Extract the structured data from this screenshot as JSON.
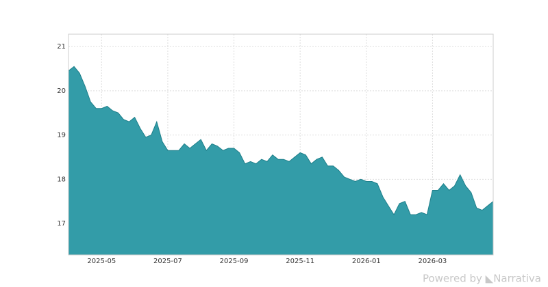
{
  "chart_data": {
    "type": "area",
    "categories": [
      null,
      null,
      null,
      null,
      null,
      null,
      "2025-05",
      null,
      null,
      null,
      null,
      null,
      null,
      null,
      null,
      null,
      null,
      null,
      "2025-07",
      null,
      null,
      null,
      null,
      null,
      null,
      null,
      null,
      null,
      null,
      null,
      "2025-09",
      null,
      null,
      null,
      null,
      null,
      null,
      null,
      null,
      null,
      null,
      null,
      "2025-11",
      null,
      null,
      null,
      null,
      null,
      null,
      null,
      null,
      null,
      null,
      null,
      "2026-01",
      null,
      null,
      null,
      null,
      null,
      null,
      null,
      null,
      null,
      null,
      null,
      "2026-03",
      null,
      null,
      null,
      null,
      null,
      null,
      null,
      null,
      null,
      null,
      null
    ],
    "values": [
      20.45,
      20.55,
      20.4,
      20.1,
      19.75,
      19.6,
      19.6,
      19.65,
      19.55,
      19.5,
      19.35,
      19.3,
      19.4,
      19.15,
      18.95,
      19.0,
      19.3,
      18.85,
      18.65,
      18.65,
      18.65,
      18.8,
      18.7,
      18.8,
      18.9,
      18.65,
      18.8,
      18.75,
      18.65,
      18.7,
      18.7,
      18.6,
      18.35,
      18.4,
      18.35,
      18.45,
      18.4,
      18.55,
      18.45,
      18.45,
      18.4,
      18.5,
      18.6,
      18.55,
      18.35,
      18.45,
      18.5,
      18.3,
      18.3,
      18.2,
      18.05,
      18.0,
      17.95,
      18.0,
      17.95,
      17.95,
      17.9,
      17.6,
      17.4,
      17.2,
      17.45,
      17.5,
      17.2,
      17.2,
      17.25,
      17.2,
      17.75,
      17.75,
      17.9,
      17.75,
      17.85,
      18.1,
      17.85,
      17.7,
      17.35,
      17.3,
      17.4,
      17.5
    ],
    "color": "#339ca8",
    "ylim": [
      16.29,
      21.28
    ],
    "yticks": [
      17,
      18,
      19,
      20,
      21
    ],
    "grid": true,
    "brand": "Powered by  ◣Narrativa"
  }
}
